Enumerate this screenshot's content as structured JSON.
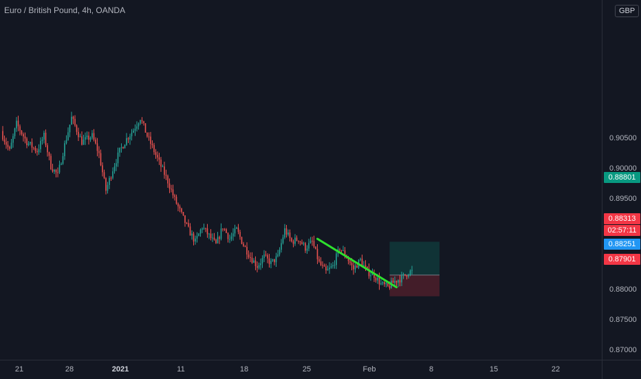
{
  "title": "Euro / British Pound, 4h, OANDA",
  "currency": "GBP",
  "chart_data": {
    "type": "candlestick",
    "symbol": "Euro / British Pound",
    "interval": "4h",
    "exchange": "OANDA",
    "y_axis": {
      "ticks": [
        "0.87000",
        "0.87500",
        "0.88000",
        "0.88500",
        "0.89000",
        "0.89500",
        "0.90000",
        "0.90500"
      ]
    },
    "x_axis": {
      "ticks": [
        {
          "label": "21"
        },
        {
          "label": "28"
        },
        {
          "label": "2021",
          "bold": true
        },
        {
          "label": "11"
        },
        {
          "label": "18"
        },
        {
          "label": "25"
        },
        {
          "label": "Feb"
        },
        {
          "label": "8"
        },
        {
          "label": "15"
        },
        {
          "label": "22"
        }
      ]
    },
    "close_path": [
      [
        0,
        0.9055
      ],
      [
        4,
        0.903
      ],
      [
        8,
        0.9075
      ],
      [
        14,
        0.9045
      ],
      [
        20,
        0.903
      ],
      [
        24,
        0.9055
      ],
      [
        28,
        0.9005
      ],
      [
        32,
        0.899
      ],
      [
        36,
        0.904
      ],
      [
        40,
        0.9085
      ],
      [
        46,
        0.9045
      ],
      [
        52,
        0.9055
      ],
      [
        56,
        0.9025
      ],
      [
        60,
        0.8965
      ],
      [
        64,
        0.9
      ],
      [
        68,
        0.903
      ],
      [
        72,
        0.905
      ],
      [
        76,
        0.9065
      ],
      [
        80,
        0.9085
      ],
      [
        84,
        0.9055
      ],
      [
        88,
        0.903
      ],
      [
        92,
        0.9005
      ],
      [
        96,
        0.898
      ],
      [
        100,
        0.895
      ],
      [
        104,
        0.8925
      ],
      [
        108,
        0.89
      ],
      [
        112,
        0.888
      ],
      [
        116,
        0.8905
      ],
      [
        120,
        0.889
      ],
      [
        124,
        0.8875
      ],
      [
        128,
        0.8905
      ],
      [
        132,
        0.8885
      ],
      [
        136,
        0.89
      ],
      [
        140,
        0.8875
      ],
      [
        144,
        0.8855
      ],
      [
        148,
        0.884
      ],
      [
        152,
        0.8855
      ],
      [
        156,
        0.8845
      ],
      [
        160,
        0.8855
      ],
      [
        164,
        0.89
      ],
      [
        168,
        0.888
      ],
      [
        172,
        0.8885
      ],
      [
        176,
        0.887
      ],
      [
        180,
        0.888
      ],
      [
        184,
        0.8845
      ],
      [
        188,
        0.883
      ],
      [
        192,
        0.884
      ],
      [
        196,
        0.887
      ],
      [
        200,
        0.8855
      ],
      [
        204,
        0.8835
      ],
      [
        208,
        0.885
      ],
      [
        212,
        0.883
      ],
      [
        216,
        0.8825
      ],
      [
        220,
        0.881
      ],
      [
        224,
        0.8805
      ],
      [
        228,
        0.8815
      ],
      [
        232,
        0.882
      ],
      [
        236,
        0.883
      ],
      [
        238,
        0.8831
      ]
    ],
    "trendline": {
      "start": {
        "t": 183,
        "price": 0.8885
      },
      "end": {
        "t": 229,
        "price": 0.8805
      },
      "color": "#2ee02e"
    },
    "position": {
      "entry": 0.88251,
      "target": 0.88801,
      "stop": 0.87901,
      "t_start": 225,
      "t_end": 254
    },
    "price_tags": [
      {
        "value": "0.88801",
        "color": "#089981"
      },
      {
        "value": "0.88313",
        "color": "#f23645"
      },
      {
        "value": "02:57:11",
        "color": "#f23645"
      },
      {
        "value": "0.88251",
        "color": "#2196f3"
      },
      {
        "value": "0.87901",
        "color": "#f23645"
      }
    ]
  }
}
